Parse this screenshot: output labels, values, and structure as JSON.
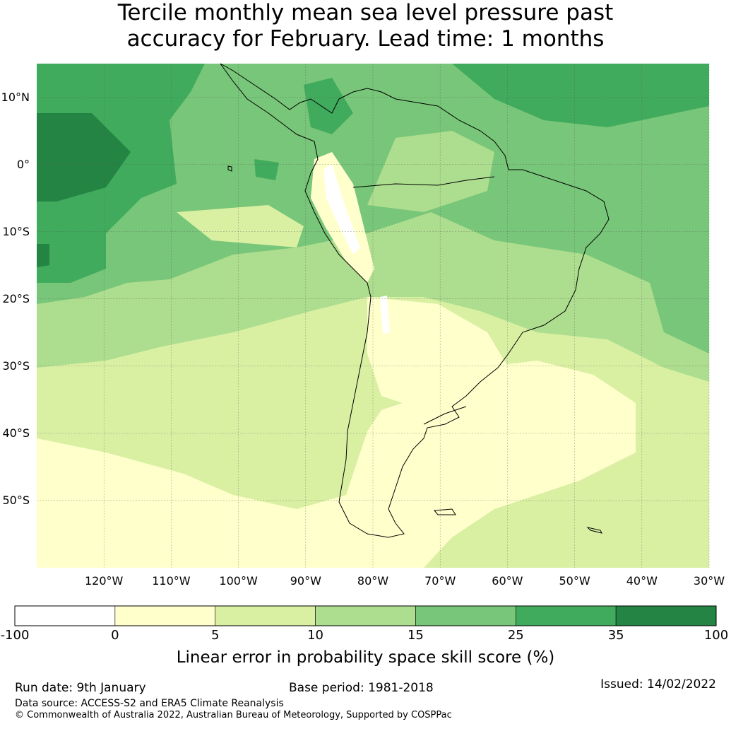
{
  "title_line1": "Tercile monthly mean sea level pressure past",
  "title_line2": "accuracy for February. Lead time: 1 months",
  "map": {
    "lon_range": [
      -130,
      -30
    ],
    "lat_range": [
      -60,
      15
    ],
    "lat_labels": [
      {
        "lat": 10,
        "text": "10°N"
      },
      {
        "lat": 0,
        "text": "0°"
      },
      {
        "lat": -10,
        "text": "10°S"
      },
      {
        "lat": -20,
        "text": "20°S"
      },
      {
        "lat": -30,
        "text": "30°S"
      },
      {
        "lat": -40,
        "text": "40°S"
      },
      {
        "lat": -50,
        "text": "50°S"
      }
    ],
    "lon_labels": [
      {
        "lon": -120,
        "text": "120°W"
      },
      {
        "lon": -110,
        "text": "110°W"
      },
      {
        "lon": -100,
        "text": "100°W"
      },
      {
        "lon": -90,
        "text": "90°W"
      },
      {
        "lon": -80,
        "text": "80°W"
      },
      {
        "lon": -70,
        "text": "70°W"
      },
      {
        "lon": -60,
        "text": "60°W"
      },
      {
        "lon": -50,
        "text": "50°W"
      },
      {
        "lon": -40,
        "text": "40°W"
      },
      {
        "lon": -30,
        "text": "30°W"
      }
    ]
  },
  "colorbar": {
    "ticks": [
      "-100",
      "0",
      "5",
      "10",
      "15",
      "25",
      "35",
      "100"
    ],
    "colors": [
      "#ffffff",
      "#ffffcc",
      "#d9f0a3",
      "#addd8e",
      "#78c679",
      "#41ab5d",
      "#238443"
    ],
    "label": "Linear error in probability space skill score (%)"
  },
  "footer": {
    "run_date": "Run date: 9th January",
    "base_period": "Base period: 1981-2018",
    "issued": "Issued: 14/02/2022",
    "data_source": "Data source: ACCESS-S2 and ERA5 Climate Reanalysis",
    "copyright": "© Commonwealth of Australia 2022, Australian Bureau of Meteorology, Supported by COSPPac"
  }
}
